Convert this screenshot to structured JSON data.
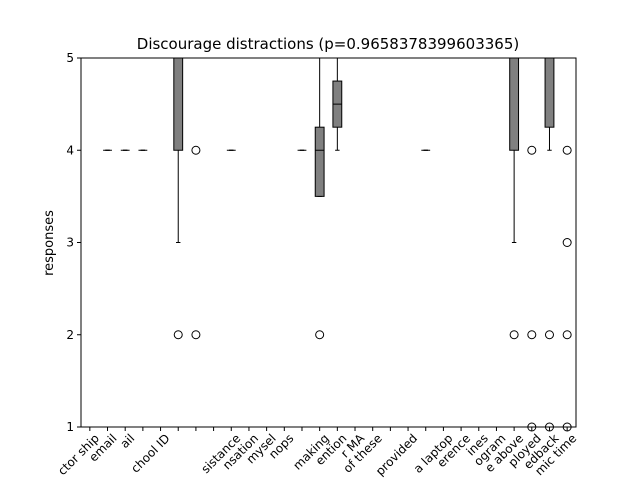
{
  "chart_data": {
    "type": "boxplot",
    "title": "Discourage distractions (p=0.9658378399603365)",
    "y_label": "responses",
    "ylim": [
      1,
      5
    ],
    "yticks": [
      1,
      2,
      3,
      4,
      5
    ],
    "box_color": "#808080",
    "categories": [
      "ctor ship",
      "email",
      "ail",
      null,
      "chool ID",
      null,
      null,
      null,
      "sistance",
      "nsation",
      "mysel",
      "nops",
      null,
      "making",
      "ention",
      "r MA",
      "of these",
      null,
      "provided",
      null,
      "a laptop",
      "erence",
      "ines",
      "ogram",
      "e above",
      "ployed",
      "edback",
      "mic time"
    ],
    "boxes": [
      {
        "whislo": 5,
        "q1": 5,
        "med": 5,
        "q3": 5,
        "whishi": 5,
        "fliers": []
      },
      {
        "whislo": 4,
        "q1": 4,
        "med": 4,
        "q3": 4,
        "whishi": 4,
        "fliers": []
      },
      {
        "whislo": 4,
        "q1": 4,
        "med": 4,
        "q3": 4,
        "whishi": 4,
        "fliers": []
      },
      {
        "whislo": 4,
        "q1": 4,
        "med": 4,
        "q3": 4,
        "whishi": 4,
        "fliers": []
      },
      {
        "whislo": 5,
        "q1": 5,
        "med": 5,
        "q3": 5,
        "whishi": 5,
        "fliers": []
      },
      {
        "whislo": 3,
        "q1": 4,
        "med": 5,
        "q3": 5,
        "whishi": 5,
        "fliers": [
          2
        ]
      },
      {
        "whislo": 5,
        "q1": 5,
        "med": 5,
        "q3": 5,
        "whishi": 5,
        "fliers": [
          4,
          2
        ]
      },
      {
        "whislo": 5,
        "q1": 5,
        "med": 5,
        "q3": 5,
        "whishi": 5,
        "fliers": []
      },
      {
        "whislo": 4,
        "q1": 4,
        "med": 4,
        "q3": 4,
        "whishi": 4,
        "fliers": []
      },
      {
        "whislo": 5,
        "q1": 5,
        "med": 5,
        "q3": 5,
        "whishi": 5,
        "fliers": []
      },
      {
        "whislo": 5,
        "q1": 5,
        "med": 5,
        "q3": 5,
        "whishi": 5,
        "fliers": []
      },
      {
        "whislo": 5,
        "q1": 5,
        "med": 5,
        "q3": 5,
        "whishi": 5,
        "fliers": []
      },
      {
        "whislo": 4,
        "q1": 4,
        "med": 4,
        "q3": 4,
        "whishi": 4,
        "fliers": []
      },
      {
        "whislo": 3.5,
        "q1": 3.5,
        "med": 4,
        "q3": 4.25,
        "whishi": 5,
        "fliers": [
          2
        ]
      },
      {
        "whislo": 4,
        "q1": 4.25,
        "med": 4.5,
        "q3": 4.75,
        "whishi": 5,
        "fliers": []
      },
      {
        "whislo": 5,
        "q1": 5,
        "med": 5,
        "q3": 5,
        "whishi": 5,
        "fliers": []
      },
      {
        "whislo": 5,
        "q1": 5,
        "med": 5,
        "q3": 5,
        "whishi": 5,
        "fliers": []
      },
      {
        "whislo": 5,
        "q1": 5,
        "med": 5,
        "q3": 5,
        "whishi": 5,
        "fliers": []
      },
      {
        "whislo": 5,
        "q1": 5,
        "med": 5,
        "q3": 5,
        "whishi": 5,
        "fliers": []
      },
      {
        "whislo": 4,
        "q1": 4,
        "med": 4,
        "q3": 4,
        "whishi": 4,
        "fliers": []
      },
      {
        "whislo": 5,
        "q1": 5,
        "med": 5,
        "q3": 5,
        "whishi": 5,
        "fliers": []
      },
      {
        "whislo": 5,
        "q1": 5,
        "med": 5,
        "q3": 5,
        "whishi": 5,
        "fliers": []
      },
      {
        "whislo": 5,
        "q1": 5,
        "med": 5,
        "q3": 5,
        "whishi": 5,
        "fliers": []
      },
      {
        "whislo": 5,
        "q1": 5,
        "med": 5,
        "q3": 5,
        "whishi": 5,
        "fliers": []
      },
      {
        "whislo": 3,
        "q1": 4,
        "med": 5,
        "q3": 5,
        "whishi": 5,
        "fliers": [
          2
        ]
      },
      {
        "whislo": 5,
        "q1": 5,
        "med": 5,
        "q3": 5,
        "whishi": 5,
        "fliers": [
          4,
          2,
          1
        ]
      },
      {
        "whislo": 4,
        "q1": 4.25,
        "med": 5,
        "q3": 5,
        "whishi": 5,
        "fliers": [
          2,
          1
        ]
      },
      {
        "whislo": 5,
        "q1": 5,
        "med": 5,
        "q3": 5,
        "whishi": 5,
        "fliers": [
          4,
          3,
          2,
          1
        ]
      }
    ]
  }
}
